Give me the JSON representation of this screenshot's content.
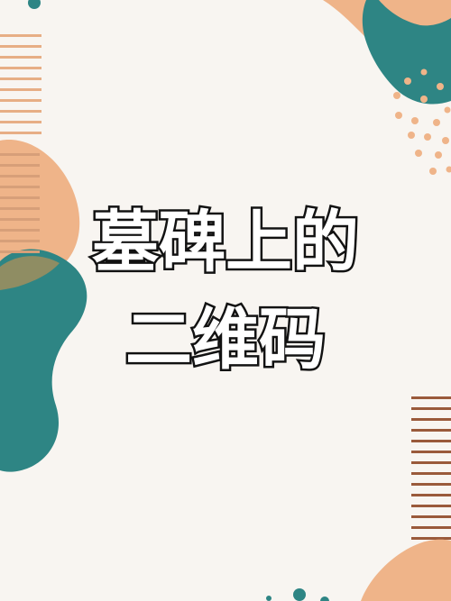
{
  "title": {
    "line1": "墓碑上的",
    "line2": "二维码"
  },
  "colors": {
    "background": "#f8f5f1",
    "peach": "#efb489",
    "teal": "#2e8584",
    "brown": "#9a5a3b",
    "text_fill": "#ffffff",
    "text_stroke": "#121212"
  }
}
